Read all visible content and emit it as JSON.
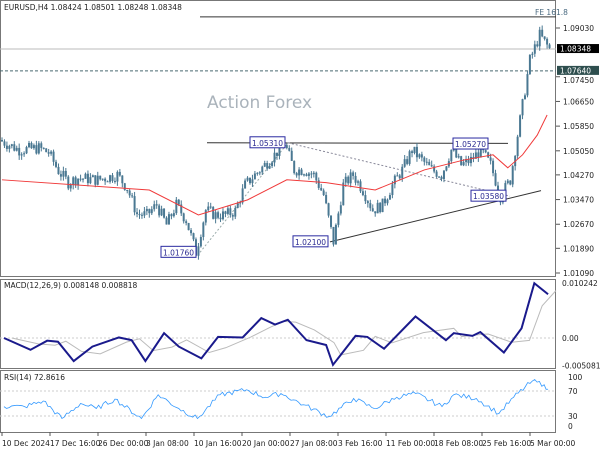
{
  "header": {
    "symbol_line": "EURUSD,H4  1.08424 1.08501 1.08248 1.08348"
  },
  "watermark": "Action Forex",
  "colors": {
    "candles": "#4a7892",
    "ma": "#f03a3a",
    "macd": "#1a1a8c",
    "signal": "#bbbbbb",
    "rsi": "#3399ff",
    "label_border": "#2a2aa0"
  },
  "chart_data": [
    {
      "type": "line",
      "title": "EURUSD,H4",
      "ohlc_last": {
        "open": 1.08424,
        "high": 1.08501,
        "low": 1.08248,
        "close": 1.08348
      },
      "price_ticks": [
        "1.09030",
        "1.07450",
        "1.06650",
        "1.05850",
        "1.05050",
        "1.04270",
        "1.03470",
        "1.02670",
        "1.01890",
        "1.01090"
      ],
      "ylim": [
        1.0109,
        1.0903
      ],
      "close": [
        1.054,
        1.0524,
        1.0508,
        1.0511,
        1.0514,
        1.0499,
        1.044,
        1.0402,
        1.0417,
        1.0414,
        1.0411,
        1.0419,
        1.0427,
        1.0384,
        1.03,
        1.0297,
        1.033,
        1.0265,
        1.033,
        1.0281,
        1.0176,
        1.0313,
        1.0297,
        1.0297,
        1.031,
        1.0394,
        1.0427,
        1.0459,
        1.0492,
        1.0531,
        1.0443,
        1.0443,
        1.0427,
        1.0362,
        1.021,
        1.0394,
        1.0427,
        1.0378,
        1.0313,
        1.033,
        1.0394,
        1.0443,
        1.0508,
        1.0475,
        1.0443,
        1.0427,
        1.0508,
        1.0459,
        1.0475,
        1.0508,
        1.0459,
        1.0358,
        1.0411,
        1.0605,
        1.0799,
        1.088,
        1.0835
      ],
      "moving_average": [
        [
          0,
          1.0411
        ],
        [
          15,
          1.0378
        ],
        [
          20,
          1.0297
        ],
        [
          25,
          1.0346
        ],
        [
          29,
          1.0411
        ],
        [
          33,
          1.0402
        ],
        [
          38,
          1.0378
        ],
        [
          43,
          1.0443
        ],
        [
          47,
          1.0475
        ],
        [
          50,
          1.0492
        ],
        [
          51.5,
          1.045
        ],
        [
          53,
          1.0492
        ],
        [
          54.5,
          1.0556
        ],
        [
          55.5,
          1.0621
        ]
      ],
      "current_price": {
        "label": "1.08348",
        "value": 1.08348
      },
      "level_line": {
        "label": "1.07640",
        "value": 1.0764
      },
      "fe_line": {
        "label": "FE 161.8",
        "value": 1.0939
      },
      "annotations": [
        {
          "label": "1.05310",
          "value": 1.0531
        },
        {
          "label": "1.05270",
          "value": 1.0527
        },
        {
          "label": "1.03580",
          "value": 1.0358
        },
        {
          "label": "1.02100",
          "value": 1.021
        },
        {
          "label": "1.01760",
          "value": 1.0176
        }
      ],
      "x_ticks": [
        "10 Dec 2024",
        "17 Dec 16:00",
        "26 Dec 00:00",
        "3 Jan 08:00",
        "10 Jan 16:00",
        "20 Jan 00:00",
        "27 Jan 08:00",
        "3 Feb 16:00",
        "11 Feb 00:00",
        "18 Feb 08:00",
        "25 Feb 16:00",
        "5 Mar 00:00"
      ]
    },
    {
      "type": "line",
      "title": "MACD(12,26,9) 0.008148 0.008818",
      "y_ticks": [
        "0.010242",
        "0.00",
        "-0.005081"
      ],
      "macd": [
        [
          0.2,
          0
        ],
        [
          2.9,
          -0.0022
        ],
        [
          4.6,
          -0.0005
        ],
        [
          5.7,
          -0.0007
        ],
        [
          7.3,
          -0.0043
        ],
        [
          9.2,
          -0.0016
        ],
        [
          11.9,
          0.0001
        ],
        [
          13.2,
          -0.0004
        ],
        [
          14.6,
          -0.0043
        ],
        [
          16.5,
          0.0009
        ],
        [
          18,
          -0.0016
        ],
        [
          20.3,
          -0.0038
        ],
        [
          22,
          0.0002
        ],
        [
          24.5,
          0.0001
        ],
        [
          26.4,
          0.0037
        ],
        [
          27.8,
          0.0025
        ],
        [
          29.1,
          0.0034
        ],
        [
          31,
          -0.0004
        ],
        [
          33,
          -0.0013
        ],
        [
          33.7,
          -0.005
        ],
        [
          36,
          0.0004
        ],
        [
          37.2,
          0.0002
        ],
        [
          38.9,
          -0.002
        ],
        [
          42.1,
          0.004
        ],
        [
          45.2,
          -0.0004
        ],
        [
          46,
          0.0009
        ],
        [
          47.9,
          0.0004
        ],
        [
          48.7,
          0.0011
        ],
        [
          51.1,
          -0.0027
        ],
        [
          52.9,
          0.0018
        ],
        [
          54.2,
          0.0102
        ],
        [
          55.6,
          0.008148
        ]
      ]
    },
    {
      "type": "line",
      "title": "RSI(14) 72.8616",
      "y_ticks": [
        "100",
        "70",
        "30",
        "0"
      ],
      "levels": [
        70,
        30
      ],
      "rsi": [
        [
          0.2,
          45
        ],
        [
          2.3,
          45
        ],
        [
          4.2,
          54
        ],
        [
          6.1,
          26
        ],
        [
          8,
          50
        ],
        [
          9.6,
          42
        ],
        [
          11.5,
          57
        ],
        [
          14.2,
          26
        ],
        [
          15.9,
          64
        ],
        [
          18,
          42
        ],
        [
          19.9,
          26
        ],
        [
          22.2,
          64
        ],
        [
          24.9,
          72
        ],
        [
          26.8,
          60
        ],
        [
          28.4,
          66
        ],
        [
          30.7,
          48
        ],
        [
          33.3,
          29
        ],
        [
          35.8,
          58
        ],
        [
          37.9,
          42
        ],
        [
          40.2,
          60
        ],
        [
          42.1,
          66
        ],
        [
          44.8,
          45
        ],
        [
          46,
          64
        ],
        [
          48.3,
          58
        ],
        [
          50.6,
          34
        ],
        [
          52.1,
          60
        ],
        [
          54,
          86
        ],
        [
          55.2,
          80
        ],
        [
          55.6,
          72.86
        ]
      ]
    }
  ]
}
